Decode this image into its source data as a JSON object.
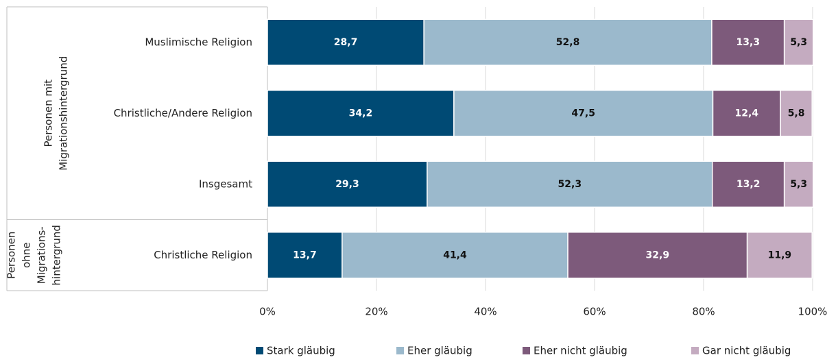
{
  "chart_data": {
    "type": "stacked-bar-horizontal",
    "categories": [
      "Muslimische Religion",
      "Christliche/Andere Religion",
      "Insgesamt",
      "Christliche Religion"
    ],
    "groups": [
      {
        "lines": [
          "Personen mit",
          "Migrationshintergrund"
        ]
      },
      {
        "lines": [
          "Personen",
          "ohne",
          "Migrations-",
          "hintergrund"
        ]
      }
    ],
    "series": [
      {
        "name": "Stark gläubig",
        "color": "#004a74",
        "label_color": "#ffffff",
        "values": [
          28.7,
          34.2,
          29.3,
          13.7
        ],
        "value_labels": [
          "28,7",
          "34,2",
          "29,3",
          "13,7"
        ]
      },
      {
        "name": "Eher gläubig",
        "color": "#9bb9cc",
        "label_color": "#111111",
        "values": [
          52.8,
          47.5,
          52.3,
          41.4
        ],
        "value_labels": [
          "52,8",
          "47,5",
          "52,3",
          "41,4"
        ]
      },
      {
        "name": "Eher nicht gläubig",
        "color": "#7d5a7b",
        "label_color": "#ffffff",
        "values": [
          13.3,
          12.4,
          13.2,
          32.9
        ],
        "value_labels": [
          "13,3",
          "12,4",
          "13,2",
          "32,9"
        ]
      },
      {
        "name": "Gar nicht gläubig",
        "color": "#c4abc0",
        "label_color": "#111111",
        "values": [
          5.3,
          5.8,
          5.3,
          11.9
        ],
        "value_labels": [
          "5,3",
          "5,8",
          "5,3",
          "11,9"
        ]
      }
    ],
    "xlim": [
      0,
      100
    ],
    "xticks": [
      {
        "value": 0,
        "label": "0%"
      },
      {
        "value": 20,
        "label": "20%"
      },
      {
        "value": 40,
        "label": "40%"
      },
      {
        "value": 60,
        "label": "60%"
      },
      {
        "value": 80,
        "label": "80%"
      },
      {
        "value": 100,
        "label": "100%"
      }
    ],
    "grid": true,
    "legend": "bottom"
  }
}
